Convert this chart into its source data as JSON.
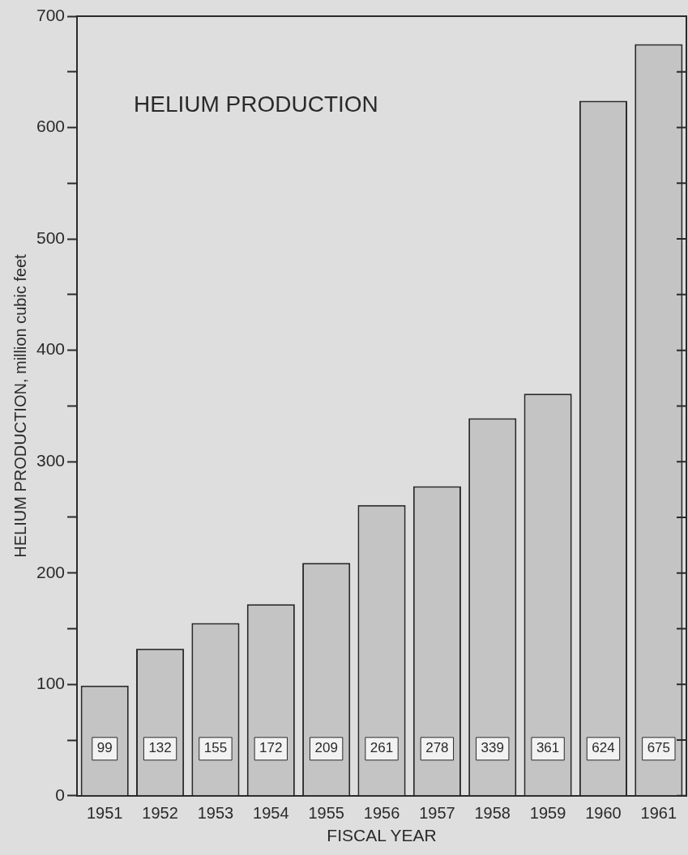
{
  "chart_data": {
    "type": "bar",
    "title": "HELIUM PRODUCTION",
    "xlabel": "FISCAL YEAR",
    "ylabel": "HELIUM PRODUCTION, million cubic feet",
    "categories": [
      "1951",
      "1952",
      "1953",
      "1954",
      "1955",
      "1956",
      "1957",
      "1958",
      "1959",
      "1960",
      "1961"
    ],
    "values": [
      99,
      132,
      155,
      172,
      209,
      261,
      278,
      339,
      361,
      624,
      675
    ],
    "color": "#c4c4c4",
    "data_labels": true,
    "ylim": [
      0,
      700
    ],
    "yticks": [
      0,
      {
        "value": 50,
        "label": null
      },
      100,
      {
        "value": 150,
        "label": null
      },
      200,
      {
        "value": 250,
        "label": null
      },
      300,
      {
        "value": 350,
        "label": null
      },
      400,
      {
        "value": 450,
        "label": null
      },
      500,
      {
        "value": 550,
        "label": null
      },
      600,
      {
        "value": 650,
        "label": null
      },
      700
    ],
    "grid": false,
    "legend": false
  }
}
